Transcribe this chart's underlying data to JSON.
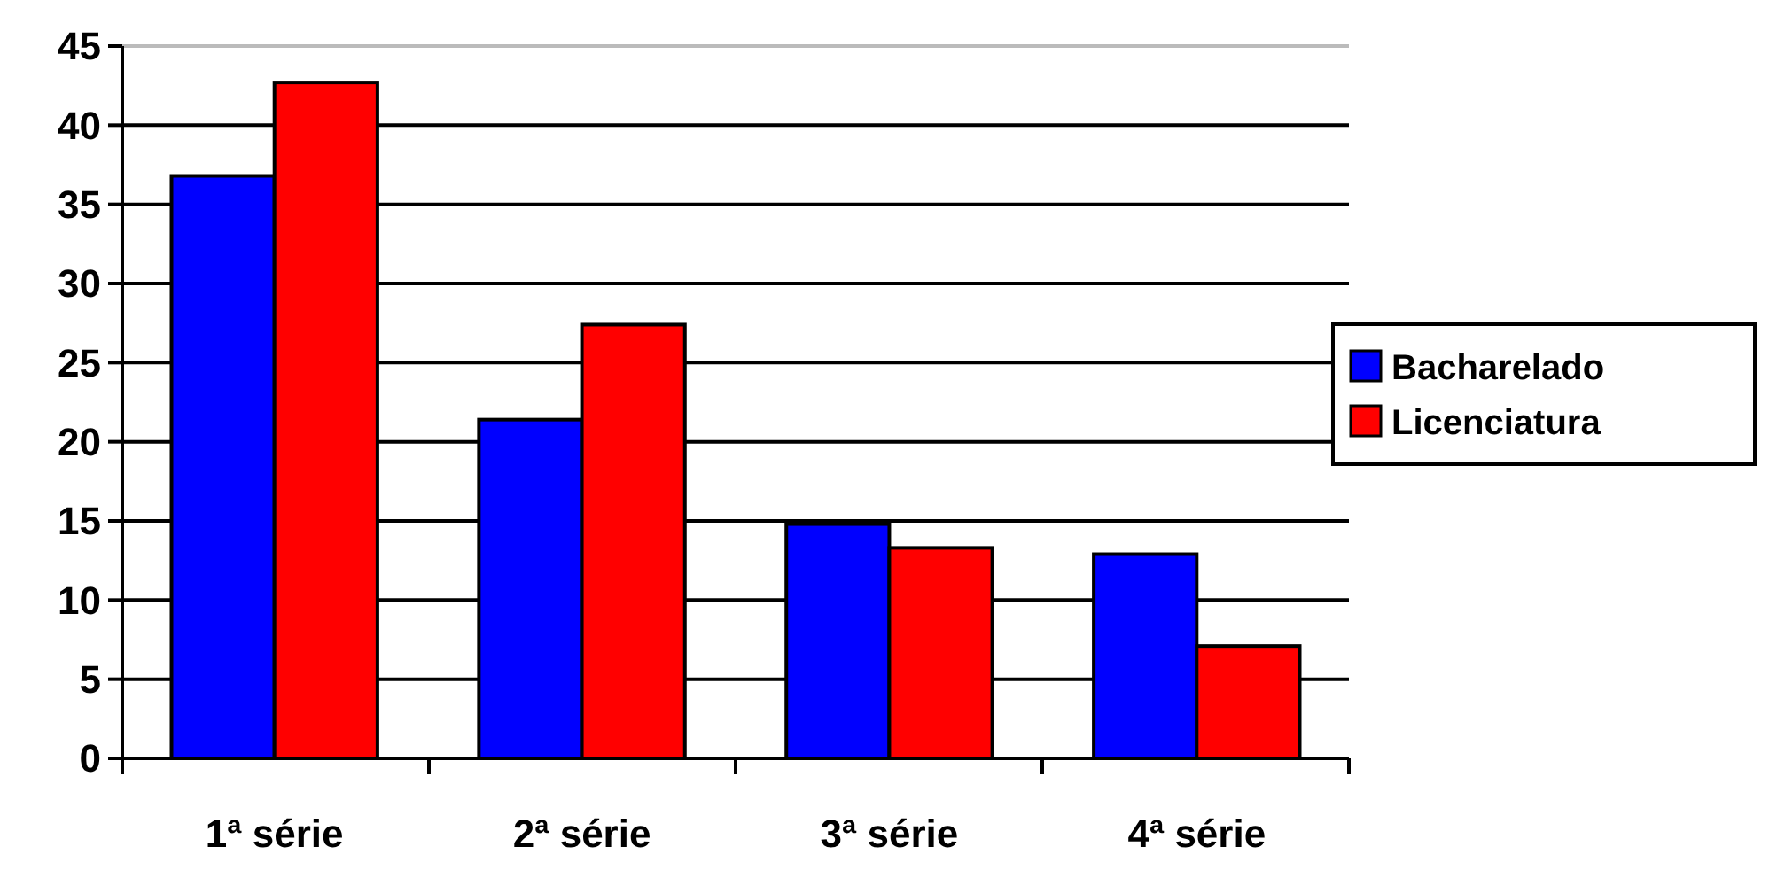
{
  "chart_data": {
    "type": "bar",
    "categories": [
      "1ª série",
      "2ª série",
      "3ª série",
      "4ª série"
    ],
    "series": [
      {
        "name": "Bacharelado",
        "color": "#0000ff",
        "values": [
          36.8,
          21.4,
          14.8,
          12.9
        ]
      },
      {
        "name": "Licenciatura",
        "color": "#ff0000",
        "values": [
          42.7,
          27.4,
          13.3,
          7.1
        ]
      }
    ],
    "ylim": [
      0,
      45
    ],
    "yticks": [
      0,
      5,
      10,
      15,
      20,
      25,
      30,
      35,
      40,
      45
    ],
    "grid": "y",
    "legend": "right"
  }
}
